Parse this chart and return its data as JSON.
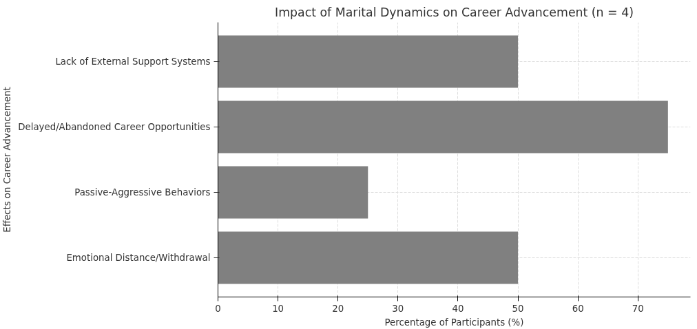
{
  "chart_data": {
    "type": "bar",
    "orientation": "horizontal",
    "title": "Impact of Marital Dynamics on Career Advancement (n = 4)",
    "xlabel": "Percentage of Participants (%)",
    "ylabel": "Effects on Career Advancement",
    "categories": [
      "Lack of External Support Systems",
      "Delayed/Abandoned Career Opportunities",
      "Passive-Aggressive Behaviors",
      "Emotional Distance/Withdrawal"
    ],
    "values": [
      50,
      75,
      25,
      50
    ],
    "color": "#808080",
    "xlim": [
      0,
      78.75
    ],
    "xticks": [
      0,
      10,
      20,
      30,
      40,
      50,
      60,
      70
    ],
    "grid": true
  }
}
